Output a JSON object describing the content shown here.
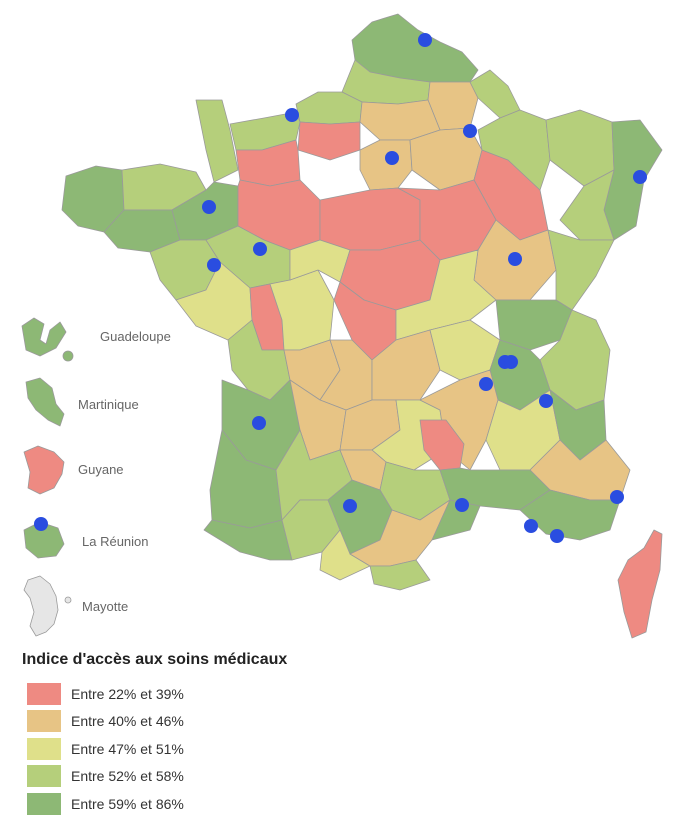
{
  "legend": {
    "title": "Indice d'accès aux soins médicaux",
    "classes": [
      {
        "label": "Entre 22% et 39%",
        "color": "#ee8a82"
      },
      {
        "label": "Entre 40% et 46%",
        "color": "#e7c485"
      },
      {
        "label": "Entre 47% et 51%",
        "color": "#dfe08a"
      },
      {
        "label": "Entre 52% et 58%",
        "color": "#b5cf7b"
      },
      {
        "label": "Entre 59% et 86%",
        "color": "#8db875"
      }
    ]
  },
  "territories": [
    {
      "name": "Guadeloupe",
      "class": 4
    },
    {
      "name": "Martinique",
      "class": 4
    },
    {
      "name": "Guyane",
      "class": 0
    },
    {
      "name": "La Réunion",
      "class": 4
    },
    {
      "name": "Mayotte",
      "class": null
    }
  ],
  "marker_color": "#2a4de0",
  "no_data_color": "#e6e6e6"
}
